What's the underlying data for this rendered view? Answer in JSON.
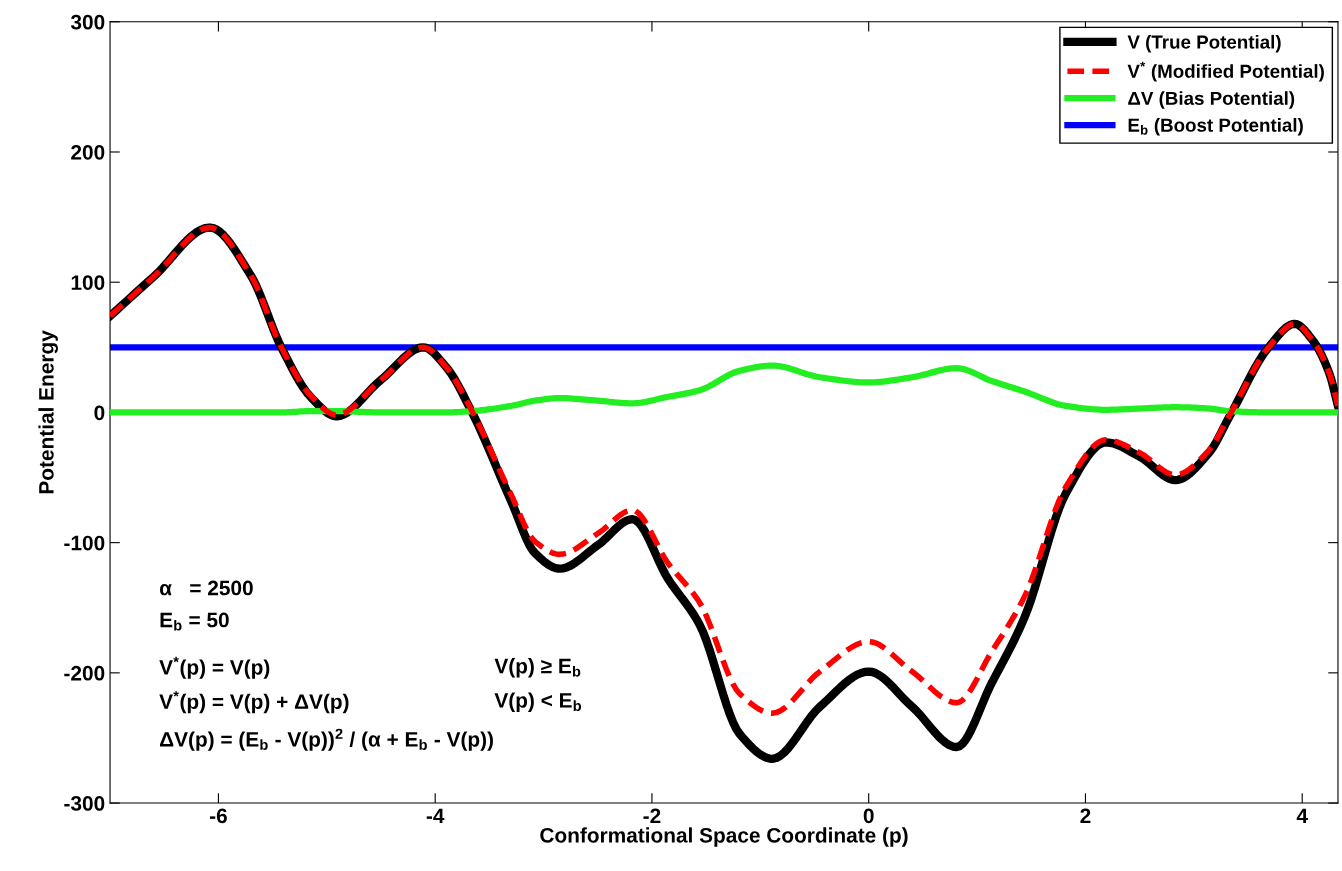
{
  "chart_data": {
    "type": "line",
    "xlabel": "Conformational Space Coordinate (p)",
    "ylabel": "Potential Energy",
    "x": [
      -7.0,
      -6.6,
      -6.08,
      -5.7,
      -5.42,
      -5.15,
      -4.91,
      -4.5,
      -4.11,
      -3.9,
      -3.66,
      -3.3,
      -3.08,
      -2.85,
      -2.5,
      -2.18,
      -1.85,
      -1.56,
      -1.19,
      -0.89,
      -0.45,
      0,
      0.4,
      0.81,
      1.14,
      1.44,
      1.82,
      2.19,
      2.5,
      2.83,
      3.14,
      3.33,
      3.69,
      3.93,
      4.1,
      4.25,
      4.33
    ],
    "series": [
      {
        "name": "V (True Potential)",
        "color": "#000000",
        "line_style": "solid",
        "values": [
          74,
          104,
          142,
          105,
          50,
          12,
          -3,
          25,
          50,
          35,
          0,
          -68,
          -108,
          -120,
          -102,
          -82,
          -128,
          -163,
          -247,
          -266,
          -226,
          -199,
          -226,
          -257,
          -207,
          -157,
          -62,
          -23,
          -34,
          -52,
          -31,
          -3,
          50,
          68,
          55,
          30,
          5
        ]
      },
      {
        "name": "V$^{*}$ (Modified Potential)",
        "color": "#ff0000",
        "line_style": "dashed",
        "values": [
          74,
          104,
          142,
          105,
          50,
          13,
          -2,
          25,
          50,
          35,
          1,
          -63,
          -99,
          -109,
          -93,
          -75,
          -116,
          -146,
          -216,
          -231,
          -199,
          -176,
          -199,
          -223,
          -183,
          -141,
          -57,
          -21,
          -31,
          -48,
          -29,
          -2,
          50,
          68,
          55,
          30,
          5
        ]
      },
      {
        "name": "ΔV (Bias Potential)",
        "color": "#22ee22",
        "line_style": "solid",
        "values": [
          0,
          0,
          0,
          0,
          0,
          1,
          1,
          0,
          0,
          0,
          1,
          5,
          9,
          11,
          9,
          7,
          12,
          17,
          32,
          36,
          27,
          23,
          27,
          34,
          24,
          16,
          5,
          2,
          3,
          4,
          3,
          1,
          0,
          0,
          0,
          0,
          0
        ]
      },
      {
        "name": "E$_{b}$ (Boost Potential)",
        "color": "#0000ff",
        "line_style": "solid",
        "x": [
          -7.0,
          4.33
        ],
        "values": [
          50,
          50
        ]
      }
    ],
    "xlim": [
      -7.0,
      4.33
    ],
    "ylim": [
      -300,
      300
    ],
    "xticks": [
      -6,
      -4,
      -2,
      0,
      2,
      4
    ],
    "yticks": [
      -300,
      -200,
      -100,
      0,
      100,
      200,
      300
    ],
    "grid": false,
    "legend": "top right",
    "marker": "none",
    "annotations": [
      "α   = 2500",
      "E$_{b}$ = 50",
      "V$^{*}$(p) = V(p)",
      "V$^{*}$(p) = V(p) + ΔV(p)",
      "ΔV(p) = (E$_{b}$ - V(p))$^{2}$ / (α + E$_{b}$ - V(p))",
      "V(p) ≥ E$_{b}$",
      "V(p) < E$_{b}$"
    ]
  }
}
